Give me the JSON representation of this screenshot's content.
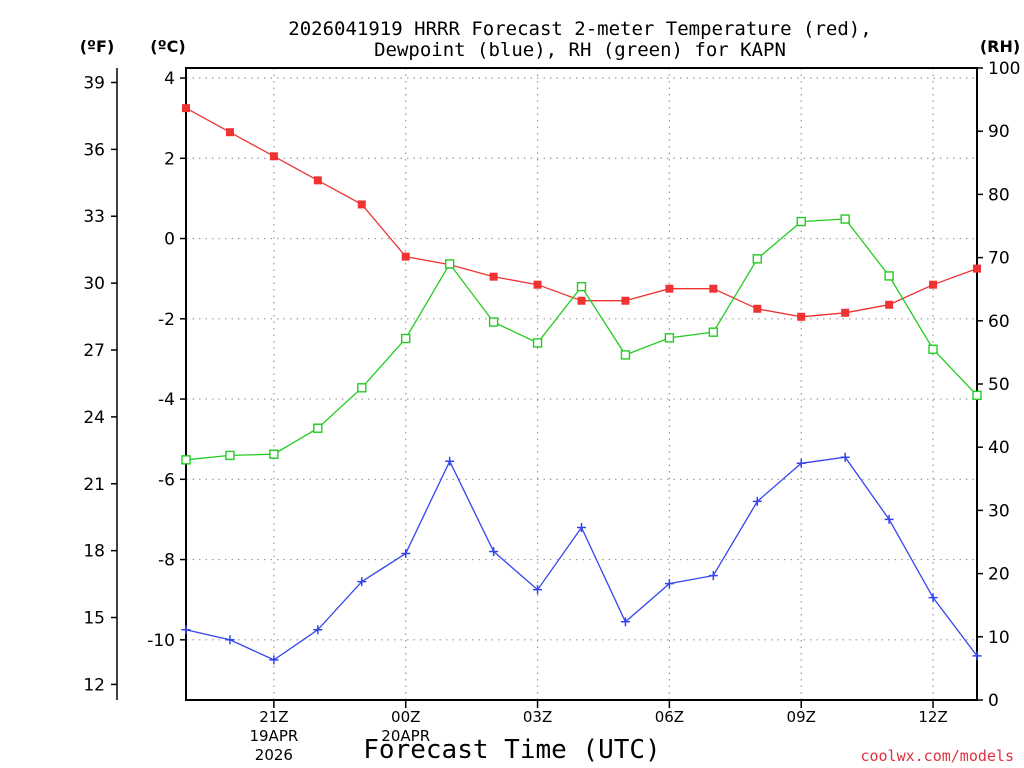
{
  "chart_data": {
    "type": "line",
    "title_line1": "2026041919 HRRR Forecast 2-meter Temperature (red),",
    "title_line2": "Dewpoint (blue), RH (green) for KAPN",
    "xlabel": "Forecast Time (UTC)",
    "watermark": "coolwx.com/models",
    "left_f_label": "(ºF)",
    "left_c_label": "(ºC)",
    "right_label": "(RH)",
    "celsius_range": [
      -11.5,
      4.25
    ],
    "rh_range": [
      0,
      100
    ],
    "f_ticks": [
      "12",
      "15",
      "18",
      "21",
      "24",
      "27",
      "30",
      "33",
      "36",
      "39"
    ],
    "c_ticks": [
      "-10",
      "-8",
      "-6",
      "-4",
      "-2",
      "0",
      "2",
      "4"
    ],
    "rh_ticks": [
      "0",
      "10",
      "20",
      "30",
      "40",
      "50",
      "60",
      "70",
      "80",
      "90",
      "100"
    ],
    "hours_start": 19,
    "hours_end": 37,
    "x_ticks": [
      {
        "hour": 21,
        "label": "21Z",
        "sub1": "19APR",
        "sub2": "2026"
      },
      {
        "hour": 24,
        "label": "00Z",
        "sub1": "20APR",
        "sub2": ""
      },
      {
        "hour": 27,
        "label": "03Z",
        "sub1": "",
        "sub2": ""
      },
      {
        "hour": 30,
        "label": "06Z",
        "sub1": "",
        "sub2": ""
      },
      {
        "hour": 33,
        "label": "09Z",
        "sub1": "",
        "sub2": ""
      },
      {
        "hour": 36,
        "label": "12Z",
        "sub1": "",
        "sub2": ""
      }
    ],
    "hours": [
      19,
      20,
      21,
      22,
      23,
      24,
      25,
      26,
      27,
      28,
      29,
      30,
      31,
      32,
      33,
      34,
      35,
      36,
      37
    ],
    "series": [
      {
        "name": "Temperature",
        "unit": "°C",
        "axis": "celsius",
        "color": "#ee3333",
        "marker": "filled-square",
        "values": [
          3.25,
          2.65,
          2.05,
          1.45,
          0.85,
          -0.45,
          -0.65,
          -0.95,
          -1.15,
          -1.55,
          -1.55,
          -1.25,
          -1.25,
          -1.75,
          -1.95,
          -1.85,
          -1.65,
          -1.15,
          -0.75
        ]
      },
      {
        "name": "Dewpoint",
        "unit": "°C",
        "axis": "celsius",
        "color": "#3344ee",
        "marker": "plus",
        "values": [
          -9.75,
          -10.0,
          -10.5,
          -9.75,
          -8.55,
          -7.85,
          -5.55,
          -7.8,
          -8.75,
          -7.2,
          -9.55,
          -8.6,
          -8.4,
          -6.55,
          -5.6,
          -5.45,
          -7.0,
          -8.95,
          -10.4
        ]
      },
      {
        "name": "RH",
        "unit": "%",
        "axis": "rh",
        "color": "#22cc22",
        "marker": "open-square",
        "values": [
          38.0,
          38.7,
          38.9,
          43.0,
          49.4,
          57.2,
          69.0,
          59.8,
          56.5,
          65.4,
          54.6,
          57.3,
          58.2,
          69.8,
          75.7,
          76.1,
          67.1,
          55.5,
          48.2
        ]
      }
    ]
  }
}
